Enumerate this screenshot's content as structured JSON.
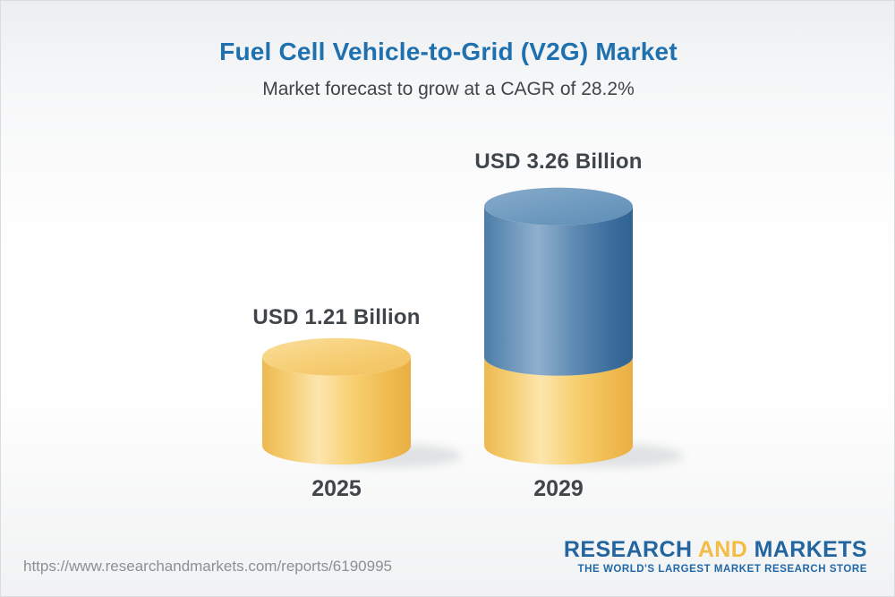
{
  "header": {
    "title": "Fuel Cell Vehicle-to-Grid (V2G) Market",
    "subtitle": "Market forecast to grow at a CAGR of 28.2%"
  },
  "chart_data": {
    "type": "bar",
    "variant": "3d-cylinder-stacked",
    "title": "Fuel Cell Vehicle-to-Grid (V2G) Market",
    "subtitle": "Market forecast to grow at a CAGR of 28.2%",
    "cagr_percent": 28.2,
    "unit": "USD Billion",
    "categories": [
      "2025",
      "2029"
    ],
    "values": [
      1.21,
      3.26
    ],
    "value_labels": [
      "USD 1.21 Billion",
      "USD 3.26 Billion"
    ],
    "baseline_value": 1.21,
    "xlabel": "",
    "ylabel": "",
    "axes": "none",
    "grid": false,
    "legend": "none",
    "colors": {
      "base_segment": "#f6cb66",
      "growth_segment": "#4a7ca8",
      "title_blue": "#1e70af",
      "label_dark": "#40454a"
    }
  },
  "footer": {
    "url": "https://www.researchandmarkets.com/reports/6190995",
    "logo": {
      "part1": "RESEARCH",
      "part2": "AND",
      "part3": "MARKETS",
      "tagline": "THE WORLD'S LARGEST MARKET RESEARCH STORE",
      "blue": "#23659f",
      "gold": "#f3bc45"
    }
  }
}
